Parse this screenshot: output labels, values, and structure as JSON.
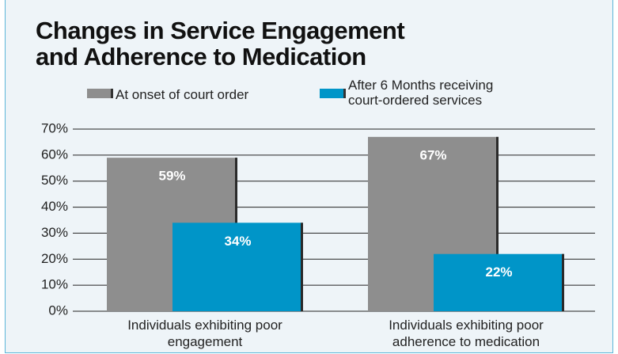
{
  "chart_data": {
    "type": "bar",
    "title": "Changes in Service Engagement and Adherence to Medication",
    "categories": [
      "Individuals exhibiting poor engagement",
      "Individuals exhibiting poor adherence to medication"
    ],
    "series": [
      {
        "name": "At onset of court order",
        "color": "#8e8e8e",
        "values": [
          59,
          67
        ],
        "value_labels": [
          "59%",
          "67%"
        ]
      },
      {
        "name": "After 6 Months receiving court-ordered services",
        "color": "#0095c8",
        "values": [
          34,
          22
        ],
        "value_labels": [
          "34%",
          "22%"
        ]
      }
    ],
    "ylim": [
      0,
      70
    ],
    "yticks": [
      {
        "value": 0,
        "label": "0%"
      },
      {
        "value": 10,
        "label": "10%"
      },
      {
        "value": 20,
        "label": "20%"
      },
      {
        "value": 30,
        "label": "30%"
      },
      {
        "value": 40,
        "label": "40%"
      },
      {
        "value": 50,
        "label": "50%"
      },
      {
        "value": 60,
        "label": "60%"
      },
      {
        "value": 70,
        "label": "70%"
      }
    ],
    "grid": true
  }
}
